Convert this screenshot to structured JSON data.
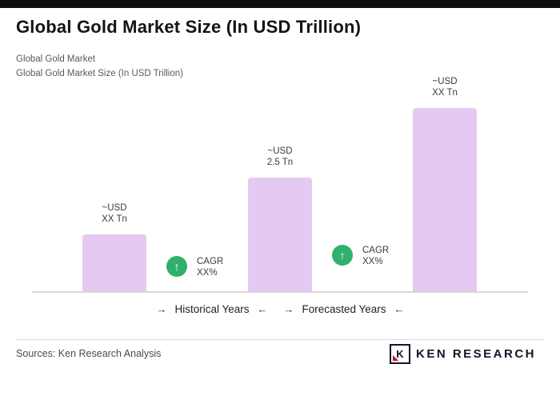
{
  "page": {
    "title": "Global Gold Market Size (In USD Trillion)",
    "subtitle_line1": "Global Gold Market",
    "subtitle_line2": "Global Gold Market Size (In USD Trillion)",
    "sources": "Sources: Ken Research Analysis"
  },
  "chart_data": {
    "type": "bar",
    "title": "Global Gold Market Size (In USD Trillion)",
    "unit": "USD Trillion",
    "bars": [
      {
        "value_line1": "~USD",
        "value_line2": "XX Tn",
        "relative_height": 0.31
      },
      {
        "value_line1": "~USD",
        "value_line2": "2.5 Tn",
        "relative_height": 0.62
      },
      {
        "value_line1": "~USD",
        "value_line2": "XX Tn",
        "relative_height": 1.0
      }
    ],
    "cagr_badges": [
      {
        "label": "CAGR",
        "value": "XX%"
      },
      {
        "label": "CAGR",
        "value": "XX%"
      }
    ],
    "axis_groups": [
      {
        "arrow_left": "→",
        "label": "Historical Years",
        "arrow_right": "←"
      },
      {
        "arrow_left": "→",
        "label": "Forecasted Years",
        "arrow_right": "←"
      }
    ],
    "bar_color": "#e6c9f2",
    "badge_color": "#2fb06d",
    "arrow_icon": "↑",
    "legend_position": "none",
    "grid": false
  },
  "logo": {
    "letter": "K",
    "text": "KEN RESEARCH"
  }
}
